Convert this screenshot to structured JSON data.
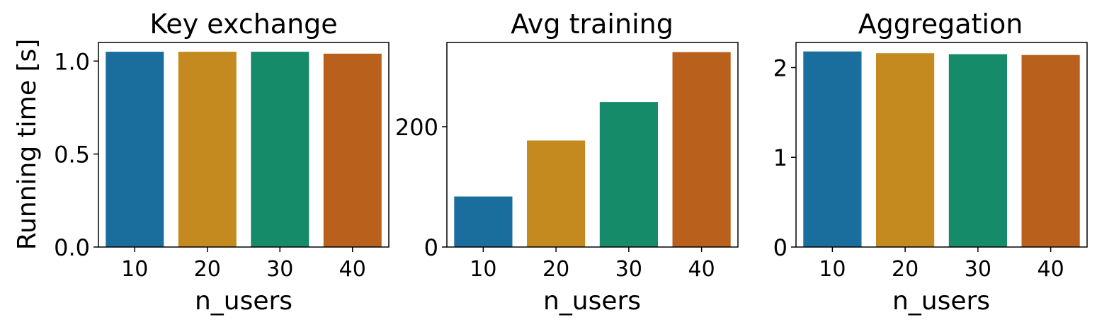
{
  "palette": [
    "#1a6e9e",
    "#c48a1f",
    "#168b6a",
    "#b8601c"
  ],
  "chart_data": [
    {
      "type": "bar",
      "title": "Key exchange",
      "xlabel": "n_users",
      "ylabel": "Running time [s]",
      "categories": [
        "10",
        "20",
        "30",
        "40"
      ],
      "values": [
        1.05,
        1.05,
        1.05,
        1.04
      ],
      "ylim": [
        0,
        1.1
      ],
      "yticks": [
        0.0,
        0.5,
        1.0
      ],
      "ytick_labels": [
        "0.0",
        "0.5",
        "1.0"
      ],
      "grid": false
    },
    {
      "type": "bar",
      "title": "Avg training",
      "xlabel": "n_users",
      "ylabel": "",
      "categories": [
        "10",
        "20",
        "30",
        "40"
      ],
      "values": [
        84,
        177,
        241,
        324
      ],
      "ylim": [
        0,
        340
      ],
      "yticks": [
        0,
        200
      ],
      "ytick_labels": [
        "0",
        "200"
      ],
      "grid": false
    },
    {
      "type": "bar",
      "title": "Aggregation",
      "xlabel": "n_users",
      "ylabel": "",
      "categories": [
        "10",
        "20",
        "30",
        "40"
      ],
      "values": [
        2.18,
        2.16,
        2.15,
        2.14
      ],
      "ylim": [
        0,
        2.28
      ],
      "yticks": [
        0,
        1,
        2
      ],
      "ytick_labels": [
        "0",
        "1",
        "2"
      ],
      "grid": false
    }
  ]
}
